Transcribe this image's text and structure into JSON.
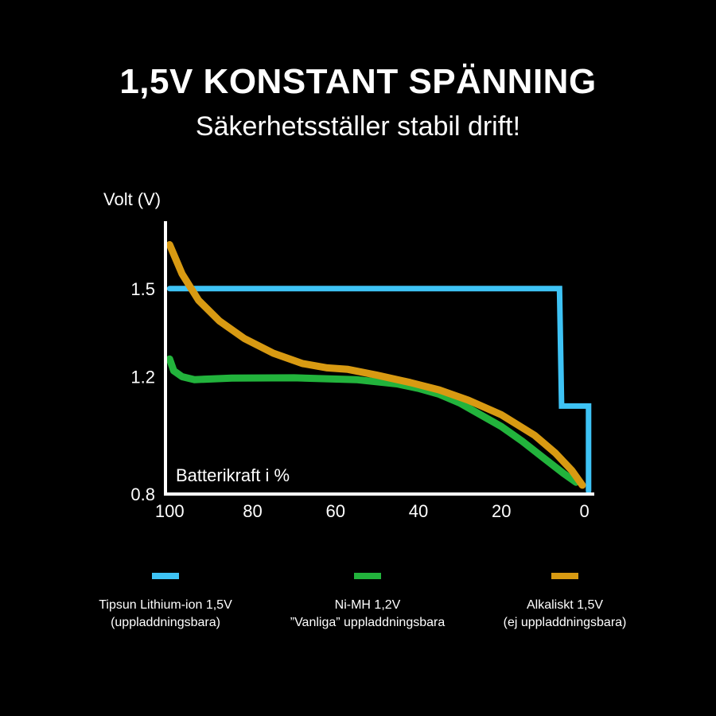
{
  "header": {
    "title": "1,5V KONSTANT SPÄNNING",
    "subtitle": "Säkerhetsställer stabil drift!"
  },
  "legend": [
    {
      "swatch_color": "#3ec3f5",
      "line1": "Tipsun Lithium-ion 1,5V",
      "line2": "(uppladdningsbara)"
    },
    {
      "swatch_color": "#22b33c",
      "line1": "Ni-MH 1,2V",
      "line2": "”Vanliga” uppladdningsbara"
    },
    {
      "swatch_color": "#d89a12",
      "line1": "Alkaliskt 1,5V",
      "line2": "(ej uppladdningsbara)"
    }
  ],
  "chart_data": {
    "type": "line",
    "title": "1,5V KONSTANT SPÄNNING",
    "ylabel": "Volt (V)",
    "xlabel": "Batterikraft i %",
    "x_reversed": true,
    "xlim": [
      101,
      -2
    ],
    "ylim": [
      0.8,
      1.73
    ],
    "x_ticks": [
      100,
      80,
      60,
      40,
      20,
      0
    ],
    "y_ticks": [
      1.5,
      1.2,
      0.8
    ],
    "x_tick_labels": [
      "100",
      "80",
      "60",
      "40",
      "20",
      "0"
    ],
    "y_tick_labels": [
      "1.5",
      "1.2",
      "0.8"
    ],
    "grid": false,
    "series": [
      {
        "name": "Tipsun Lithium-ion 1,5V",
        "color": "#3ec3f5",
        "points": [
          [
            100,
            1.5
          ],
          [
            6,
            1.5
          ],
          [
            5.5,
            1.1
          ],
          [
            -1,
            1.1
          ],
          [
            -1,
            0.81
          ]
        ]
      },
      {
        "name": "Ni-MH 1,2V",
        "color": "#22b33c",
        "points": [
          [
            100,
            1.26
          ],
          [
            99,
            1.22
          ],
          [
            97,
            1.2
          ],
          [
            94,
            1.19
          ],
          [
            85,
            1.195
          ],
          [
            70,
            1.196
          ],
          [
            55,
            1.19
          ],
          [
            45,
            1.175
          ],
          [
            40,
            1.16
          ],
          [
            35,
            1.14
          ],
          [
            30,
            1.11
          ],
          [
            25,
            1.07
          ],
          [
            20,
            1.03
          ],
          [
            15,
            0.98
          ],
          [
            10,
            0.925
          ],
          [
            5,
            0.87
          ],
          [
            2,
            0.84
          ]
        ]
      },
      {
        "name": "Alkaliskt 1,5V",
        "color": "#d89a12",
        "points": [
          [
            100,
            1.65
          ],
          [
            97,
            1.55
          ],
          [
            93,
            1.46
          ],
          [
            88,
            1.39
          ],
          [
            82,
            1.33
          ],
          [
            75,
            1.28
          ],
          [
            68,
            1.245
          ],
          [
            62,
            1.23
          ],
          [
            57,
            1.225
          ],
          [
            50,
            1.205
          ],
          [
            42,
            1.18
          ],
          [
            35,
            1.155
          ],
          [
            28,
            1.12
          ],
          [
            20,
            1.07
          ],
          [
            12,
            1.0
          ],
          [
            7,
            0.94
          ],
          [
            3,
            0.88
          ],
          [
            0.5,
            0.83
          ]
        ]
      }
    ]
  }
}
